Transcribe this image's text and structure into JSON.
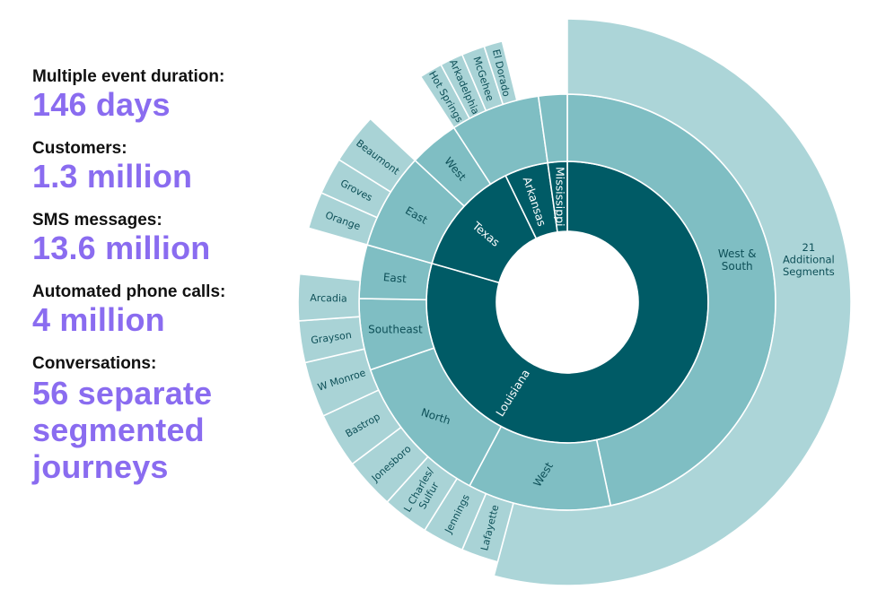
{
  "stats": [
    {
      "label": "Multiple event duration:",
      "value": "146 days"
    },
    {
      "label": "Customers:",
      "value": "1.3 million"
    },
    {
      "label": "SMS messages:",
      "value": "13.6 million"
    },
    {
      "label": "Automated phone calls:",
      "value": "4 million"
    },
    {
      "label": "Conversations:",
      "value": "56 separate segmented journeys"
    }
  ],
  "colors": {
    "level1": "#005b66",
    "level2": "#7fbec3",
    "level3": "#a9d3d6",
    "outer": "#acd5d8",
    "separator": "#ffffff",
    "dark_text": "#ffffff",
    "light_text": "#0d4f57",
    "accent_text": "#8a6cf0"
  },
  "chart_data": {
    "type": "sunburst",
    "title": "",
    "root": [
      {
        "name": "West & South",
        "level": 2,
        "children": [
          {
            "name": "21 Additional Segments",
            "level": 3
          }
        ]
      },
      {
        "name": "Louisiana",
        "level": 1,
        "children": [
          {
            "name": "West",
            "children": [
              {
                "name": "Lafayette"
              },
              {
                "name": "Jennings"
              },
              {
                "name": "L Charles/ Sulfur"
              }
            ]
          },
          {
            "name": "North",
            "children": [
              {
                "name": "Jonesboro"
              },
              {
                "name": "Bastrop"
              },
              {
                "name": "W Monroe"
              }
            ]
          },
          {
            "name": "Southeast",
            "children": [
              {
                "name": "Grayson"
              },
              {
                "name": "Arcadia"
              }
            ]
          },
          {
            "name": "East",
            "children": []
          }
        ]
      },
      {
        "name": "Texas",
        "level": 1,
        "children": [
          {
            "name": "East",
            "children": [
              {
                "name": "Orange"
              },
              {
                "name": "Groves"
              },
              {
                "name": "Beaumont"
              }
            ]
          },
          {
            "name": "West",
            "children": []
          }
        ]
      },
      {
        "name": "Arkansas",
        "level": 1,
        "children": [
          {
            "name": "Hot Springs"
          },
          {
            "name": "Arkadelphia"
          },
          {
            "name": "McGehee"
          },
          {
            "name": "El Dorado"
          }
        ]
      },
      {
        "name": "Mississippi",
        "level": 1,
        "children": []
      }
    ]
  }
}
